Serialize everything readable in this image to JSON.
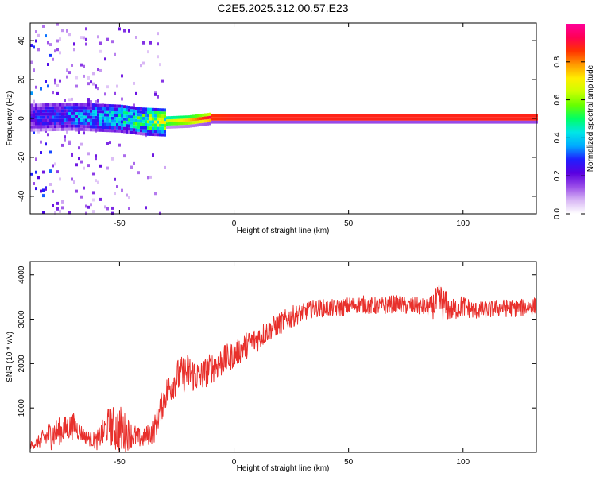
{
  "title": "C2E5.2025.312.00.57.E23",
  "chart_data": [
    {
      "type": "heatmap",
      "xlabel": "Height of straight line (km)",
      "ylabel": "Frequency (Hz)",
      "xlim": [
        -89,
        132
      ],
      "ylim": [
        -49,
        49
      ],
      "xticks": [
        -50,
        0,
        50,
        100
      ],
      "yticks": [
        -40,
        -20,
        0,
        20,
        40
      ],
      "colorbar": {
        "label": "Normalized spectral amplitude",
        "range": [
          0,
          1
        ],
        "ticks": [
          0.0,
          0.2,
          0.4,
          0.6,
          0.8
        ],
        "colormap": [
          "#ffffff",
          "#d9b8f5",
          "#9a4de8",
          "#5b00e0",
          "#1f1fff",
          "#00aaff",
          "#00e6e6",
          "#00ff66",
          "#66ff00",
          "#ccff00",
          "#ffee00",
          "#ff9900",
          "#ff3300",
          "#ff0055",
          "#ff0099"
        ]
      },
      "description_series": [
        {
          "name": "ridge_center",
          "x": [
            -89,
            -70,
            -50,
            -40,
            -30,
            -20,
            -10,
            0,
            50,
            100,
            132
          ],
          "y": [
            1,
            1.5,
            0.5,
            -1,
            -1.5,
            -1,
            0.5,
            0.5,
            0.5,
            0.5,
            0.5
          ]
        },
        {
          "name": "ridge_amplitude",
          "x": [
            -89,
            -70,
            -50,
            -40,
            -30,
            -20,
            -10,
            0,
            50,
            100,
            132
          ],
          "y": [
            0.25,
            0.35,
            0.45,
            0.55,
            0.65,
            0.75,
            0.95,
            0.97,
            0.97,
            0.97,
            0.97
          ]
        }
      ]
    },
    {
      "type": "line",
      "xlabel": "Height of straight line (km)",
      "ylabel": "SNR (10 * v/v)",
      "xlim": [
        -89,
        132
      ],
      "ylim": [
        0,
        4300
      ],
      "xticks": [
        -50,
        0,
        50,
        100
      ],
      "yticks": [
        1000,
        2000,
        3000,
        4000
      ],
      "color": "#e8302c",
      "series": [
        {
          "x": [
            -89,
            -85,
            -80,
            -75,
            -70,
            -65,
            -60,
            -55,
            -50,
            -45,
            -40,
            -35,
            -30,
            -25,
            -20,
            -15,
            -10,
            -5,
            0,
            5,
            10,
            15,
            20,
            25,
            30,
            35,
            40,
            45,
            50,
            55,
            60,
            65,
            70,
            75,
            80,
            85,
            90,
            95,
            100,
            105,
            110,
            115,
            120,
            125,
            132
          ],
          "y": [
            150,
            250,
            400,
            500,
            600,
            350,
            250,
            600,
            500,
            400,
            300,
            500,
            1300,
            1700,
            1800,
            1700,
            1900,
            2050,
            2200,
            2400,
            2550,
            2750,
            2900,
            3050,
            3150,
            3250,
            3250,
            3250,
            3300,
            3350,
            3300,
            3300,
            3350,
            3300,
            3300,
            3250,
            3400,
            3200,
            3300,
            3200,
            3200,
            3250,
            3250,
            3250,
            3300
          ],
          "noise": [
            80,
            150,
            350,
            300,
            300,
            150,
            200,
            400,
            600,
            300,
            200,
            300,
            350,
            400,
            450,
            350,
            350,
            350,
            300,
            300,
            300,
            250,
            250,
            250,
            200,
            200,
            200,
            200,
            200,
            200,
            200,
            200,
            200,
            200,
            200,
            200,
            450,
            250,
            250,
            200,
            200,
            200,
            200,
            200,
            200
          ]
        }
      ]
    }
  ]
}
